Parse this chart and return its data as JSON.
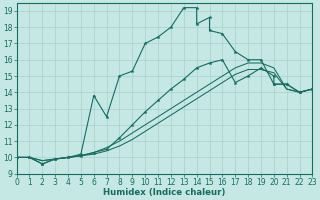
{
  "xlabel": "Humidex (Indice chaleur)",
  "xlim": [
    0,
    23
  ],
  "ylim": [
    9,
    19.5
  ],
  "xticks": [
    0,
    1,
    2,
    3,
    4,
    5,
    6,
    7,
    8,
    9,
    10,
    11,
    12,
    13,
    14,
    15,
    16,
    17,
    18,
    19,
    20,
    21,
    22,
    23
  ],
  "yticks": [
    9,
    10,
    11,
    12,
    13,
    14,
    15,
    16,
    17,
    18,
    19
  ],
  "bg_color": "#c5e8e4",
  "grid_color": "#a8d0cc",
  "line_color": "#1a6b5e",
  "s1x": [
    0,
    1,
    2,
    3,
    4,
    5,
    6,
    7,
    8,
    9,
    10,
    11,
    12,
    13,
    14,
    14,
    15,
    15,
    16,
    17,
    18,
    19,
    20,
    21,
    22,
    23
  ],
  "s1y": [
    10.0,
    10.0,
    9.6,
    9.9,
    10.0,
    10.2,
    13.8,
    12.5,
    15.0,
    15.3,
    17.0,
    17.4,
    18.0,
    19.2,
    19.2,
    18.2,
    18.6,
    17.8,
    17.6,
    16.5,
    16.0,
    16.0,
    14.5,
    14.5,
    14.0,
    14.2
  ],
  "s2x": [
    0,
    1,
    2,
    3,
    4,
    5,
    6,
    7,
    8,
    9,
    10,
    11,
    12,
    13,
    14,
    15,
    16,
    17,
    18,
    19,
    20,
    20,
    21,
    22,
    23
  ],
  "s2y": [
    10.0,
    10.0,
    9.6,
    9.9,
    10.0,
    10.1,
    10.3,
    10.5,
    11.2,
    12.0,
    12.8,
    13.5,
    14.2,
    14.8,
    15.5,
    15.8,
    16.0,
    14.6,
    15.0,
    15.5,
    15.0,
    14.5,
    14.5,
    14.0,
    14.2
  ],
  "s3x": [
    0,
    1,
    2,
    3,
    4,
    5,
    6,
    7,
    8,
    9,
    10,
    11,
    12,
    13,
    14,
    15,
    16,
    17,
    18,
    19,
    20,
    21,
    22,
    23
  ],
  "s3y": [
    10.0,
    10.0,
    9.8,
    9.9,
    10.0,
    10.1,
    10.2,
    10.4,
    10.7,
    11.1,
    11.6,
    12.1,
    12.6,
    13.1,
    13.6,
    14.1,
    14.6,
    15.1,
    15.4,
    15.4,
    15.2,
    14.2,
    14.0,
    14.2
  ],
  "s4x": [
    0,
    1,
    2,
    3,
    4,
    5,
    6,
    7,
    8,
    9,
    10,
    11,
    12,
    13,
    14,
    15,
    16,
    17,
    18,
    19,
    20,
    21,
    22,
    23
  ],
  "s4y": [
    10.0,
    10.0,
    9.8,
    9.9,
    10.0,
    10.1,
    10.3,
    10.6,
    11.0,
    11.5,
    12.0,
    12.5,
    13.0,
    13.5,
    14.0,
    14.5,
    15.0,
    15.5,
    15.8,
    15.8,
    15.5,
    14.2,
    14.0,
    14.2
  ]
}
